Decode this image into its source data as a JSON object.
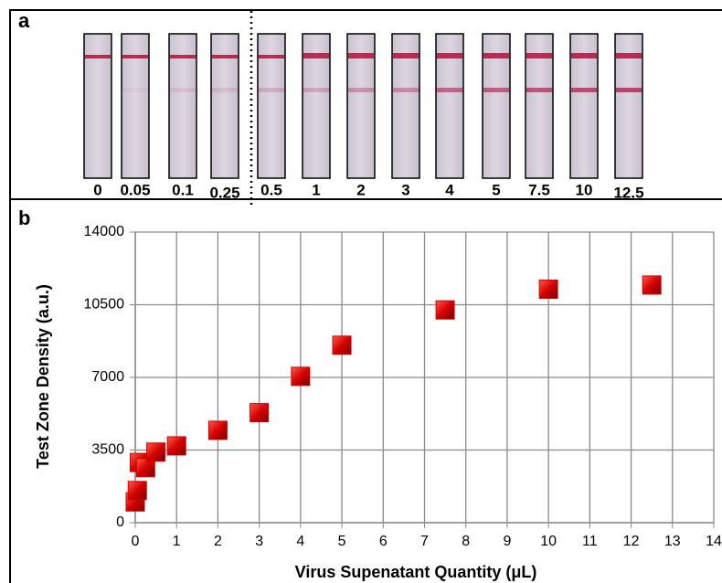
{
  "panel_a": {
    "label": "a",
    "strip_labels": [
      "0",
      "0.05",
      "0.1",
      "0.25",
      "0.5",
      "1",
      "2",
      "3",
      "4",
      "5",
      "7.5",
      "10",
      "12.5"
    ]
  },
  "panel_b": {
    "label": "b"
  },
  "chart_data": {
    "type": "scatter",
    "x_label": "Virus Supenatant Quantity (μL)",
    "y_label": "Test Zone Density (a.u.)",
    "x": [
      0,
      0.05,
      0.1,
      0.25,
      0.5,
      1,
      2,
      3,
      4,
      5,
      7.5,
      10,
      12.5
    ],
    "values": [
      1000,
      1550,
      2900,
      2650,
      3400,
      3700,
      4450,
      5300,
      7050,
      8550,
      10250,
      11250,
      11450
    ],
    "color": "#d40000",
    "xlim": [
      0,
      14
    ],
    "xticks": [
      0,
      1,
      2,
      3,
      4,
      5,
      6,
      7,
      8,
      9,
      10,
      11,
      12,
      13,
      14
    ],
    "ylim": [
      0,
      14000
    ],
    "yticks": [
      0,
      3500,
      7000,
      10500,
      14000
    ],
    "grid": true
  }
}
